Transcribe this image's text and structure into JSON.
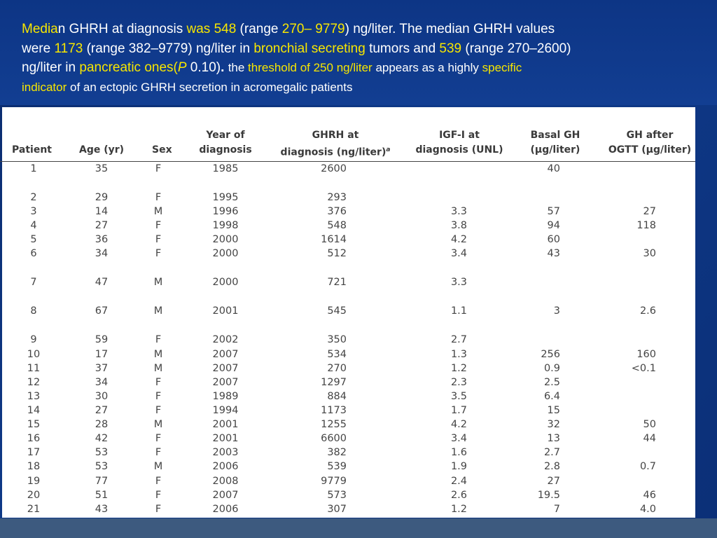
{
  "caption": {
    "p1": "Media",
    "p2": "n GHRH at diagnosis ",
    "p3": "was 548",
    "p4": " (range ",
    "p5": "270– 9779",
    "p6": ") ng/liter. The median GHRH values",
    "p7": "were ",
    "p8": "1173",
    "p9": " (range 382–9779) ng/liter in ",
    "p10": "bronchial secreting",
    "p11": " tumors and ",
    "p12": "539",
    "p13": " (range 270–2600)",
    "p14": "ng/liter in ",
    "p15": "pancreatic ones(",
    "p16": "P",
    "p17": " 0.10)",
    "p18": ". ",
    "p19": "the ",
    "p20": "threshold of 250 ng/liter",
    "p21": " appears as a highly ",
    "p22": "specific",
    "p23": "indicator",
    "p24": " of an ectopic GHRH secretion in acromegalic patients"
  },
  "table": {
    "headers": {
      "patient": "Patient",
      "age": "Age (yr)",
      "sex": "Sex",
      "year_l1": "Year of",
      "year_l2": "diagnosis",
      "ghrh_l1": "GHRH at",
      "ghrh_l2": "diagnosis (ng/liter)",
      "ghrh_sup": "a",
      "igf_l1": "IGF-I at",
      "igf_l2": "diagnosis (UNL)",
      "basal_l1": "Basal GH",
      "basal_l2": "(μg/liter)",
      "after_l1": "GH after",
      "after_l2": "OGTT (μg/liter)"
    },
    "rows": [
      {
        "patient": "1",
        "age": "35",
        "sex": "F",
        "year": "1985",
        "ghrh": "2600",
        "igf": "",
        "basal": "40",
        "after": ""
      },
      {
        "patient": "2",
        "age": "29",
        "sex": "F",
        "year": "1995",
        "ghrh": "293",
        "igf": "",
        "basal": "",
        "after": ""
      },
      {
        "patient": "3",
        "age": "14",
        "sex": "M",
        "year": "1996",
        "ghrh": "376",
        "igf": "3.3",
        "basal": "57",
        "after": "27"
      },
      {
        "patient": "4",
        "age": "27",
        "sex": "F",
        "year": "1998",
        "ghrh": "548",
        "igf": "3.8",
        "basal": "94",
        "after": "118"
      },
      {
        "patient": "5",
        "age": "36",
        "sex": "F",
        "year": "2000",
        "ghrh": "1614",
        "igf": "4.2",
        "basal": "60",
        "after": ""
      },
      {
        "patient": "6",
        "age": "34",
        "sex": "F",
        "year": "2000",
        "ghrh": "512",
        "igf": "3.4",
        "basal": "43",
        "after": "30"
      },
      {
        "patient": "7",
        "age": "47",
        "sex": "M",
        "year": "2000",
        "ghrh": "721",
        "igf": "3.3",
        "basal": "",
        "after": ""
      },
      {
        "patient": "8",
        "age": "67",
        "sex": "M",
        "year": "2001",
        "ghrh": "545",
        "igf": "1.1",
        "basal": "3",
        "after": "2.6"
      },
      {
        "patient": "9",
        "age": "59",
        "sex": "F",
        "year": "2002",
        "ghrh": "350",
        "igf": "2.7",
        "basal": "",
        "after": ""
      },
      {
        "patient": "10",
        "age": "17",
        "sex": "M",
        "year": "2007",
        "ghrh": "534",
        "igf": "1.3",
        "basal": "256",
        "after": "160"
      },
      {
        "patient": "11",
        "age": "37",
        "sex": "M",
        "year": "2007",
        "ghrh": "270",
        "igf": "1.2",
        "basal": "0.9",
        "after": "<0.1"
      },
      {
        "patient": "12",
        "age": "34",
        "sex": "F",
        "year": "2007",
        "ghrh": "1297",
        "igf": "2.3",
        "basal": "2.5",
        "after": ""
      },
      {
        "patient": "13",
        "age": "30",
        "sex": "F",
        "year": "1989",
        "ghrh": "884",
        "igf": "3.5",
        "basal": "6.4",
        "after": ""
      },
      {
        "patient": "14",
        "age": "27",
        "sex": "F",
        "year": "1994",
        "ghrh": "1173",
        "igf": "1.7",
        "basal": "15",
        "after": ""
      },
      {
        "patient": "15",
        "age": "28",
        "sex": "M",
        "year": "2001",
        "ghrh": "1255",
        "igf": "4.2",
        "basal": "32",
        "after": "50"
      },
      {
        "patient": "16",
        "age": "42",
        "sex": "F",
        "year": "2001",
        "ghrh": "6600",
        "igf": "3.4",
        "basal": "13",
        "after": "44"
      },
      {
        "patient": "17",
        "age": "53",
        "sex": "F",
        "year": "2003",
        "ghrh": "382",
        "igf": "1.6",
        "basal": "2.7",
        "after": ""
      },
      {
        "patient": "18",
        "age": "53",
        "sex": "M",
        "year": "2006",
        "ghrh": "539",
        "igf": "1.9",
        "basal": "2.8",
        "after": "0.7"
      },
      {
        "patient": "19",
        "age": "77",
        "sex": "F",
        "year": "2008",
        "ghrh": "9779",
        "igf": "2.4",
        "basal": "27",
        "after": ""
      },
      {
        "patient": "20",
        "age": "51",
        "sex": "F",
        "year": "2007",
        "ghrh": "573",
        "igf": "2.6",
        "basal": "19.5",
        "after": "46"
      },
      {
        "patient": "21",
        "age": "43",
        "sex": "F",
        "year": "2006",
        "ghrh": "307",
        "igf": "1.2",
        "basal": "7",
        "after": "4.0"
      }
    ]
  }
}
